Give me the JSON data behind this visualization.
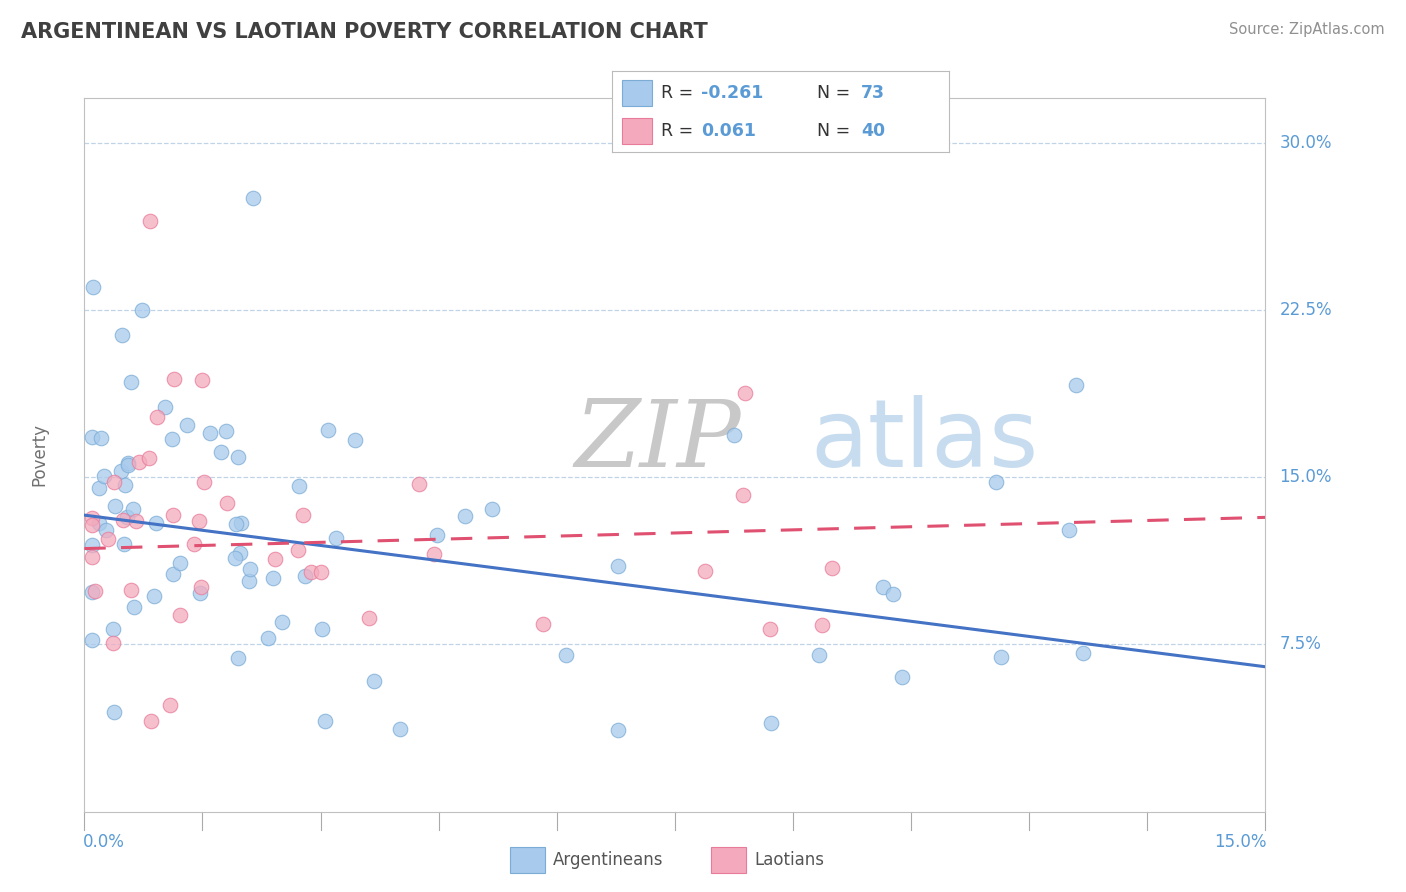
{
  "title": "ARGENTINEAN VS LAOTIAN POVERTY CORRELATION CHART",
  "source": "Source: ZipAtlas.com",
  "ylabel": "Poverty",
  "xlim": [
    0,
    0.15
  ],
  "ylim": [
    0,
    0.32
  ],
  "yticks": [
    0.075,
    0.15,
    0.225,
    0.3
  ],
  "ytick_labels": [
    "7.5%",
    "15.0%",
    "22.5%",
    "30.0%"
  ],
  "blue_color": "#A8CAEC",
  "pink_color": "#F4AABC",
  "blue_edge_color": "#7AACD6",
  "pink_edge_color": "#E87A9A",
  "blue_line_color": "#4472C4",
  "pink_line_color": "#E05070",
  "title_color": "#404040",
  "axis_label_color": "#5B9BD5",
  "watermark_zip_color": "#C8C8C8",
  "watermark_atlas_color": "#C8DCF0",
  "grid_color": "#C0D4E8",
  "arg_trend_x0": 0.0,
  "arg_trend_y0": 0.133,
  "arg_trend_x1": 0.15,
  "arg_trend_y1": 0.065,
  "lao_trend_x0": 0.0,
  "lao_trend_y0": 0.118,
  "lao_trend_x1": 0.15,
  "lao_trend_y1": 0.132
}
